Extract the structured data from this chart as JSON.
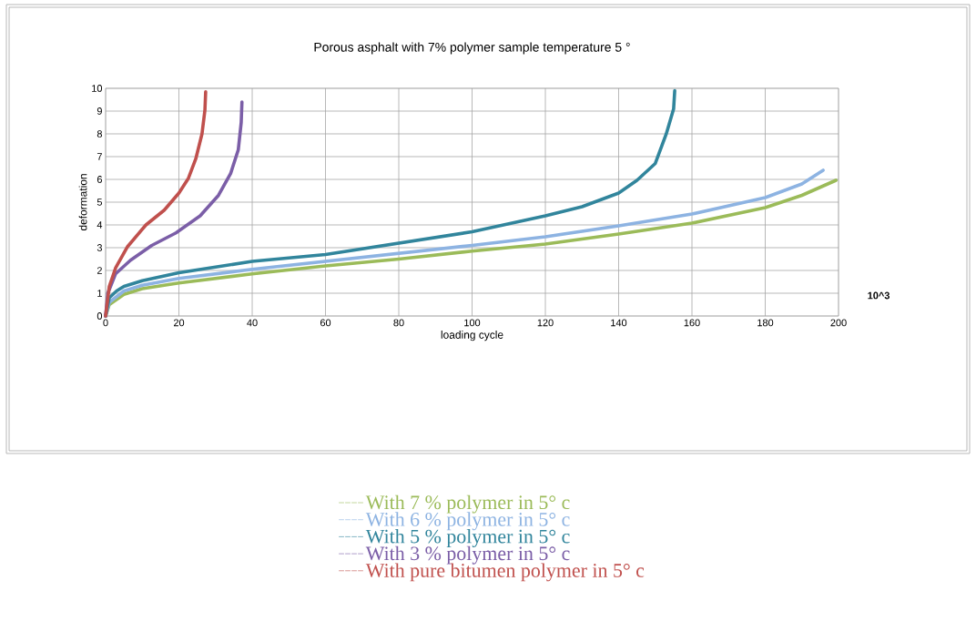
{
  "chart_data": {
    "type": "line",
    "title": "Porous asphalt with 7% polymer sample temperature 5 °",
    "xlabel": "loading cycle",
    "ylabel": "deformation",
    "annotations": [
      "10^3"
    ],
    "xlim": [
      0,
      200
    ],
    "xticks": [
      0,
      20,
      40,
      60,
      80,
      100,
      120,
      140,
      160,
      180,
      200
    ],
    "ylim": [
      0,
      10
    ],
    "yticks": [
      0,
      1,
      2,
      3,
      4,
      5,
      6,
      7,
      8,
      9,
      10
    ],
    "grid": true,
    "legend": "bottom",
    "marker": "none",
    "line_style": "solid",
    "series": [
      {
        "name": "With 7 % polymer in 5° c",
        "color": "#9bbb59",
        "x": [
          0,
          1,
          5,
          10,
          20,
          40,
          60,
          80,
          100,
          120,
          140,
          160,
          180,
          190,
          199.3
        ],
        "values": [
          0,
          0.5,
          0.95,
          1.2,
          1.45,
          1.85,
          2.2,
          2.5,
          2.85,
          3.16,
          3.6,
          4.08,
          4.76,
          5.3,
          5.96
        ]
      },
      {
        "name": "With 6 % polymer in 5° c",
        "color": "#8db3e2",
        "x": [
          0,
          1,
          5,
          10,
          20,
          40,
          60,
          80,
          100,
          120,
          140,
          160,
          180,
          190,
          195.8
        ],
        "values": [
          0,
          0.6,
          1.1,
          1.35,
          1.65,
          2.05,
          2.4,
          2.75,
          3.1,
          3.48,
          3.96,
          4.48,
          5.2,
          5.8,
          6.4
        ]
      },
      {
        "name": "With 5 % polymer in 5° c",
        "color": "#31859c",
        "x": [
          0,
          1,
          3,
          5,
          10,
          20,
          30,
          40,
          60,
          80,
          100,
          120,
          130,
          140,
          145,
          150,
          153,
          155,
          155.3
        ],
        "values": [
          0,
          0.8,
          1.1,
          1.3,
          1.55,
          1.9,
          2.15,
          2.4,
          2.7,
          3.2,
          3.7,
          4.4,
          4.8,
          5.4,
          5.96,
          6.7,
          8.0,
          9.1,
          9.9
        ]
      },
      {
        "name": "With 3 % polymer in 5° c",
        "color": "#7b5ea7",
        "x": [
          0,
          0.6,
          2.7,
          6.8,
          12.6,
          19.2,
          25.8,
          30.8,
          34.1,
          36.2,
          37,
          37.2
        ],
        "values": [
          0,
          1.0,
          1.85,
          2.45,
          3.1,
          3.65,
          4.4,
          5.3,
          6.25,
          7.3,
          8.5,
          9.4
        ]
      },
      {
        "name": "With pure bitumen polymer in 5° c",
        "color": "#c0504d",
        "x": [
          0,
          1,
          2.7,
          6,
          11,
          16,
          20,
          22.6,
          24.6,
          26.3,
          27.1,
          27.3
        ],
        "values": [
          0,
          1.3,
          2.1,
          3.05,
          4.0,
          4.65,
          5.4,
          6.05,
          6.9,
          8.0,
          9.05,
          9.85
        ]
      }
    ]
  }
}
